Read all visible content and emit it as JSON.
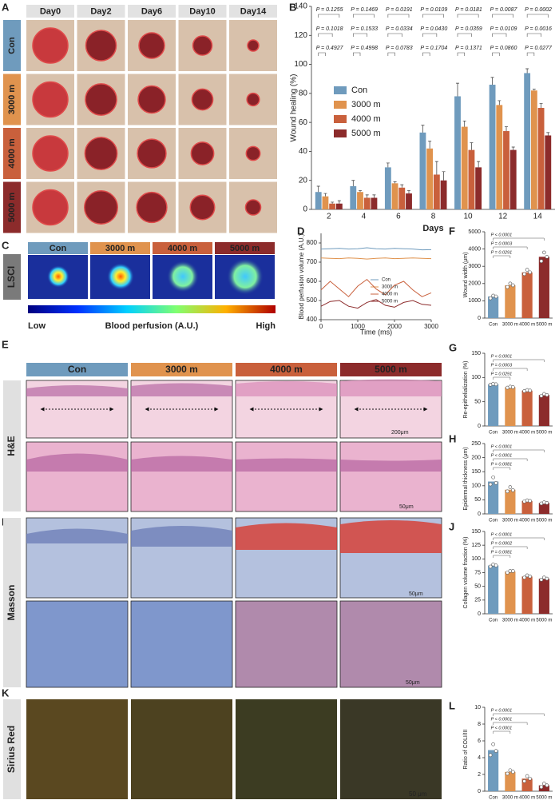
{
  "panel_letters": [
    "A",
    "B",
    "C",
    "D",
    "E",
    "F",
    "G",
    "H",
    "I",
    "J",
    "K",
    "L"
  ],
  "panel_a": {
    "days": [
      "Day0",
      "Day2",
      "Day6",
      "Day10",
      "Day14"
    ],
    "groups": [
      "Con",
      "3000 m",
      "4000 m",
      "5000 m"
    ]
  },
  "panel_c": {
    "side_label": "LSCI",
    "groups": [
      "Con",
      "3000 m",
      "4000 m",
      "5000 m"
    ],
    "low": "Low",
    "colorbar_title": "Blood perfusion (A.U.)",
    "high": "High"
  },
  "panel_e": {
    "side_label": "H&E",
    "groups": [
      "Con",
      "3000 m",
      "4000 m",
      "5000 m"
    ],
    "scale_bars": [
      "200μm",
      "50μm"
    ]
  },
  "panel_i": {
    "side_label": "Masson",
    "scale_bars": [
      "50μm",
      "50μm"
    ]
  },
  "panel_k": {
    "side_label": "Sirius Red",
    "scale_bar": "50 μm"
  },
  "chart_data": [
    {
      "type": "grouped_bar",
      "categories": [
        "2",
        "4",
        "6",
        "8",
        "10",
        "12",
        "14"
      ],
      "xlabel": "Days",
      "ylabel": "Wound healing (%)",
      "ylim": [
        0,
        140
      ],
      "yticks": [
        0,
        20,
        40,
        60,
        80,
        100,
        120,
        140
      ],
      "series": [
        {
          "name": "Con",
          "color": "#6f9bbd",
          "values": [
            12,
            16,
            29,
            53,
            78,
            86,
            94
          ],
          "errors": [
            4,
            4,
            3,
            5,
            9,
            5,
            3
          ]
        },
        {
          "name": "3000 m",
          "color": "#e0934e",
          "values": [
            9,
            12,
            18,
            42,
            57,
            72,
            82
          ],
          "errors": [
            2,
            1,
            1,
            5,
            4,
            3,
            1
          ]
        },
        {
          "name": "4000 m",
          "color": "#c9603c",
          "values": [
            4,
            8,
            15,
            24,
            41,
            54,
            70
          ],
          "errors": [
            1,
            2,
            2,
            9,
            5,
            3,
            3
          ]
        },
        {
          "name": "5000 m",
          "color": "#8c2b2b",
          "values": [
            4,
            8,
            11,
            20,
            29,
            41,
            51
          ],
          "errors": [
            2,
            2,
            2,
            6,
            4,
            2,
            2
          ]
        }
      ],
      "annotations": [
        [
          "P = 0.1255",
          "P = 0.1018",
          "P = 0.4927"
        ],
        [
          "P = 0.1469",
          "P = 0.1533",
          "P = 0.4998"
        ],
        [
          "P = 0.0191",
          "P = 0.0334",
          "P = 0.0783"
        ],
        [
          "P = 0.0109",
          "P = 0.0430",
          "P = 0.1704"
        ],
        [
          "P = 0.0181",
          "P = 0.0359",
          "P = 0.1371"
        ],
        [
          "P = 0.0087",
          "P = 0.0109",
          "P = 0.0860"
        ],
        [
          "P = 0.0002",
          "P = 0.0016",
          "P = 0.0277"
        ]
      ]
    },
    {
      "type": "line",
      "xlabel": "Time (ms)",
      "ylabel": "Blood perfusion volume (A.U.)",
      "x": [
        0,
        250,
        500,
        750,
        1000,
        1250,
        1500,
        1750,
        2000,
        2250,
        2500,
        2750,
        3000
      ],
      "xlim": [
        0,
        3000
      ],
      "xticks": [
        0,
        1000,
        2000,
        3000
      ],
      "ylim": [
        400,
        850
      ],
      "yticks": [
        400,
        500,
        600,
        700,
        800
      ],
      "series": [
        {
          "name": "Con",
          "color": "#6f9bbd",
          "values": [
            768,
            770,
            772,
            768,
            770,
            775,
            770,
            768,
            772,
            770,
            768,
            764,
            765
          ]
        },
        {
          "name": "3000 m",
          "color": "#e0934e",
          "values": [
            722,
            720,
            718,
            722,
            720,
            716,
            720,
            722,
            718,
            720,
            722,
            720,
            718
          ]
        },
        {
          "name": "4000 m",
          "color": "#c9603c",
          "values": [
            555,
            600,
            560,
            520,
            575,
            610,
            560,
            530,
            580,
            600,
            555,
            520,
            540
          ]
        },
        {
          "name": "5000 m",
          "color": "#8c2b2b",
          "values": [
            470,
            495,
            500,
            470,
            460,
            490,
            505,
            475,
            465,
            490,
            500,
            480,
            475
          ]
        }
      ]
    },
    {
      "type": "bar",
      "ylabel": "Wound width (μm)",
      "categories": [
        "Con",
        "3000 m",
        "4000 m",
        "5000 m"
      ],
      "colors": [
        "#6f9bbd",
        "#e0934e",
        "#c9603c",
        "#8c2b2b"
      ],
      "values": [
        1250,
        1900,
        2650,
        3550
      ],
      "points": [
        [
          1150,
          1300,
          1250
        ],
        [
          1800,
          2000,
          1900
        ],
        [
          2550,
          2800,
          2650
        ],
        [
          3300,
          3800,
          3550
        ]
      ],
      "ylim": [
        0,
        5000
      ],
      "yticks": [
        0,
        1000,
        2000,
        3000,
        4000,
        5000
      ],
      "annotations": [
        "P < 0.0001",
        "P = 0.0003",
        "P = 0.0291"
      ]
    },
    {
      "type": "bar",
      "ylabel": "Re-epithelialization (%)",
      "categories": [
        "Con",
        "3000 m",
        "4000 m",
        "5000 m"
      ],
      "colors": [
        "#6f9bbd",
        "#e0934e",
        "#c9603c",
        "#8c2b2b"
      ],
      "values": [
        86,
        80,
        73,
        64
      ],
      "points": [
        [
          85,
          87,
          86
        ],
        [
          79,
          81,
          80
        ],
        [
          72,
          74,
          73
        ],
        [
          62,
          66,
          64
        ]
      ],
      "ylim": [
        0,
        150
      ],
      "yticks": [
        0,
        50,
        100,
        150
      ],
      "annotations": [
        "P < 0.0001",
        "P = 0.0003",
        "P = 0.0291"
      ]
    },
    {
      "type": "bar",
      "ylabel": "Epidermal thickness (μm)",
      "categories": [
        "Con",
        "3000 m",
        "4000 m",
        "5000 m"
      ],
      "colors": [
        "#6f9bbd",
        "#e0934e",
        "#c9603c",
        "#8c2b2b"
      ],
      "values": [
        115,
        86,
        46,
        39
      ],
      "points": [
        [
          105,
          130,
          110
        ],
        [
          80,
          95,
          84
        ],
        [
          44,
          48,
          46
        ],
        [
          37,
          41,
          39
        ]
      ],
      "ylim": [
        0,
        250
      ],
      "yticks": [
        0,
        50,
        100,
        150,
        200,
        250
      ],
      "annotations": [
        "P < 0.0001",
        "P < 0.0001",
        "P = 0.0081"
      ]
    },
    {
      "type": "bar",
      "ylabel": "Collagen volume fraction (%)",
      "categories": [
        "Con",
        "3000 m",
        "4000 m",
        "5000 m"
      ],
      "colors": [
        "#6f9bbd",
        "#e0934e",
        "#c9603c",
        "#8c2b2b"
      ],
      "values": [
        88,
        77,
        68,
        64
      ],
      "points": [
        [
          86,
          90,
          88
        ],
        [
          75,
          78,
          78
        ],
        [
          66,
          70,
          68
        ],
        [
          62,
          66,
          64
        ]
      ],
      "ylim": [
        0,
        150
      ],
      "yticks": [
        0,
        25,
        50,
        75,
        100,
        125,
        150
      ],
      "annotations": [
        "P < 0.0001",
        "P = 0.0002",
        "P = 0.0081"
      ]
    },
    {
      "type": "bar",
      "ylabel": "Ratio of COLI/III",
      "categories": [
        "Con",
        "3000 m",
        "4000 m",
        "5000 m"
      ],
      "colors": [
        "#6f9bbd",
        "#e0934e",
        "#c9603c",
        "#8c2b2b"
      ],
      "values": [
        4.9,
        2.3,
        1.5,
        0.7
      ],
      "points": [
        [
          4.3,
          5.6,
          4.8
        ],
        [
          2.1,
          2.5,
          2.3
        ],
        [
          1.2,
          1.8,
          1.5
        ],
        [
          0.5,
          0.9,
          0.7
        ]
      ],
      "ylim": [
        0,
        10
      ],
      "yticks": [
        0,
        2,
        4,
        6,
        8,
        10
      ],
      "annotations": [
        "P < 0.0001",
        "P < 0.0001",
        "P < 0.0001"
      ]
    }
  ]
}
